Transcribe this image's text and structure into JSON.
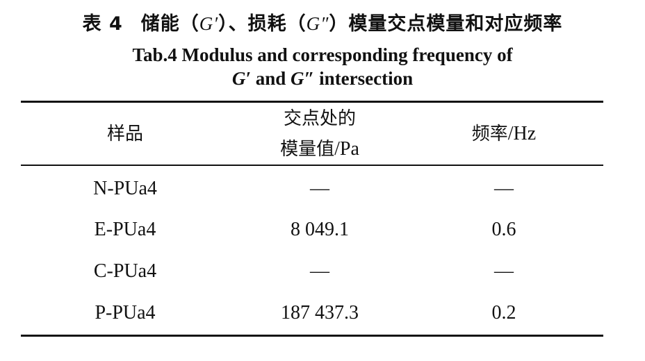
{
  "caption": {
    "cn_number": "表 4",
    "cn_part1": "储能（",
    "cn_g1": "G′",
    "cn_part2": "）、损耗（",
    "cn_g2": "G″",
    "cn_part3": "）模量交点模量和对应频率",
    "en_line1": "Tab.4 Modulus and corresponding frequency of",
    "en_g1": "G′",
    "en_mid": " and ",
    "en_g2": "G″",
    "en_end": " intersection"
  },
  "table": {
    "headers": {
      "sample": "样品",
      "modulus_line1": "交点处的",
      "modulus_line2_cn": "模量值",
      "modulus_line2_unit": "/Pa",
      "frequency_cn": "频率",
      "frequency_unit": "/Hz"
    },
    "rows": [
      {
        "sample": "N-PUa4",
        "modulus": "—",
        "frequency": "—"
      },
      {
        "sample": "E-PUa4",
        "modulus": "8 049.1",
        "frequency": "0.6"
      },
      {
        "sample": "C-PUa4",
        "modulus": "—",
        "frequency": "—"
      },
      {
        "sample": "P-PUa4",
        "modulus": "187 437.3",
        "frequency": "0.2"
      }
    ]
  }
}
